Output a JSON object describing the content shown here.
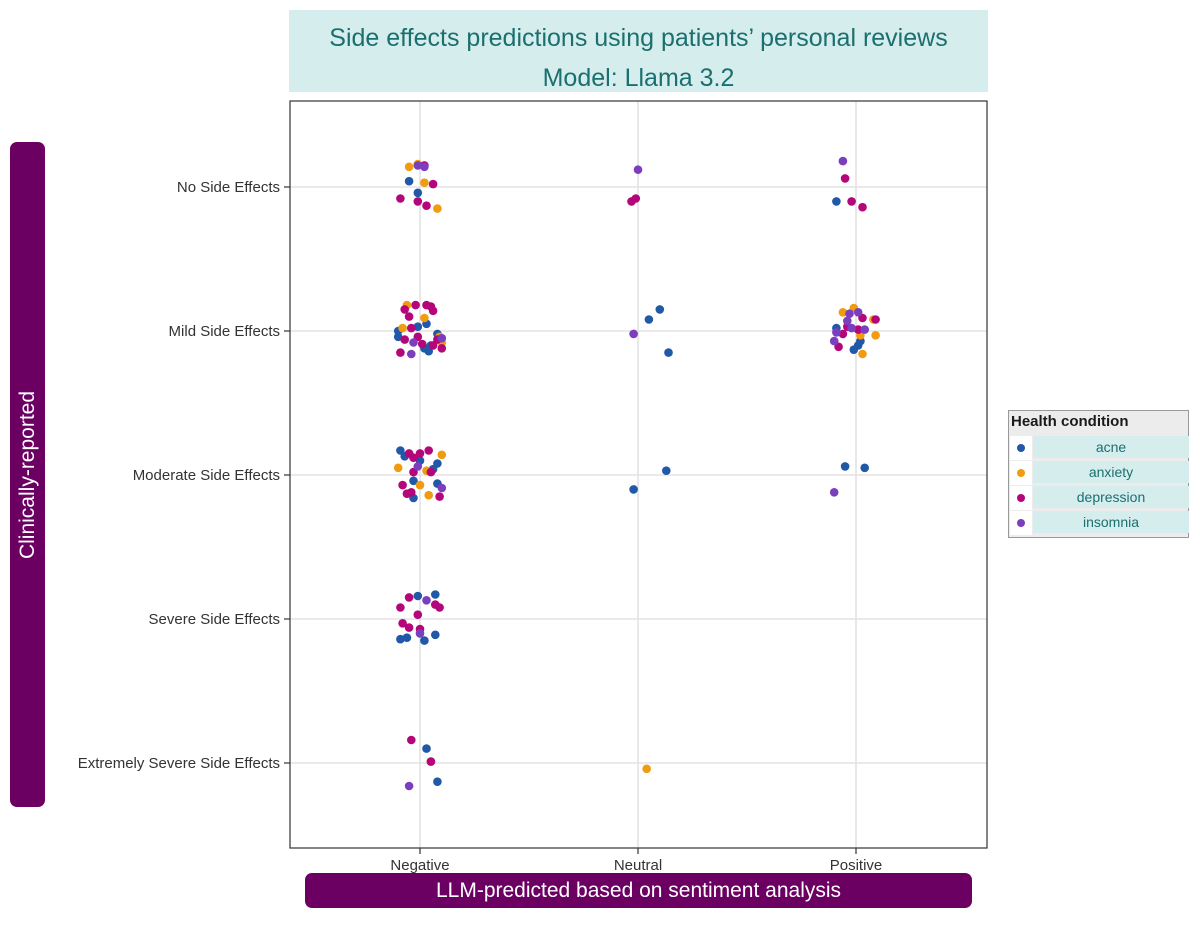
{
  "title": {
    "line1": "Side effects predictions using patients’ personal reviews",
    "line2": "Model: Llama 3.2"
  },
  "y_axis_label": "Clinically-reported",
  "x_axis_label": "LLM-predicted based on sentiment analysis",
  "legend": {
    "title": "Health condition",
    "items": [
      {
        "label": "acne",
        "color": "#2158a8"
      },
      {
        "label": "anxiety",
        "color": "#f09b10"
      },
      {
        "label": "depression",
        "color": "#b5057a"
      },
      {
        "label": "insomnia",
        "color": "#7a3fbf"
      }
    ]
  },
  "chart_data": {
    "type": "scatter",
    "x_categories": [
      "Negative",
      "Neutral",
      "Positive"
    ],
    "y_categories": [
      "Extremely Severe Side Effects",
      "Severe Side Effects",
      "Moderate Side Effects",
      "Mild Side Effects",
      "No Side Effects"
    ],
    "grid": true,
    "legend_position": "right",
    "series": [
      {
        "name": "acne",
        "color": "#2158a8",
        "points": [
          [
            "Negative",
            "No Side Effects",
            -0.05,
            0.04
          ],
          [
            "Negative",
            "No Side Effects",
            -0.01,
            -0.04
          ],
          [
            "Negative",
            "Mild Side Effects",
            -0.1,
            0.0
          ],
          [
            "Negative",
            "Mild Side Effects",
            -0.01,
            0.03
          ],
          [
            "Negative",
            "Mild Side Effects",
            0.03,
            0.05
          ],
          [
            "Negative",
            "Mild Side Effects",
            0.08,
            -0.02
          ],
          [
            "Negative",
            "Mild Side Effects",
            0.05,
            -0.1
          ],
          [
            "Negative",
            "Mild Side Effects",
            0.02,
            -0.12
          ],
          [
            "Negative",
            "Mild Side Effects",
            0.04,
            -0.14
          ],
          [
            "Negative",
            "Mild Side Effects",
            -0.1,
            -0.04
          ],
          [
            "Negative",
            "Moderate Side Effects",
            -0.09,
            0.17
          ],
          [
            "Negative",
            "Moderate Side Effects",
            -0.07,
            0.13
          ],
          [
            "Negative",
            "Moderate Side Effects",
            -0.03,
            -0.04
          ],
          [
            "Negative",
            "Moderate Side Effects",
            0.0,
            0.1
          ],
          [
            "Negative",
            "Moderate Side Effects",
            0.06,
            0.04
          ],
          [
            "Negative",
            "Moderate Side Effects",
            0.08,
            0.08
          ],
          [
            "Negative",
            "Moderate Side Effects",
            0.08,
            -0.06
          ],
          [
            "Negative",
            "Moderate Side Effects",
            -0.03,
            -0.16
          ],
          [
            "Negative",
            "Severe Side Effects",
            -0.01,
            0.16
          ],
          [
            "Negative",
            "Severe Side Effects",
            0.07,
            0.17
          ],
          [
            "Negative",
            "Severe Side Effects",
            -0.06,
            -0.13
          ],
          [
            "Negative",
            "Severe Side Effects",
            -0.09,
            -0.14
          ],
          [
            "Negative",
            "Severe Side Effects",
            0.02,
            -0.15
          ],
          [
            "Negative",
            "Severe Side Effects",
            0.07,
            -0.11
          ],
          [
            "Negative",
            "Extremely Severe Side Effects",
            0.03,
            0.1
          ],
          [
            "Negative",
            "Extremely Severe Side Effects",
            0.08,
            -0.13
          ],
          [
            "Neutral",
            "Mild Side Effects",
            0.05,
            0.08
          ],
          [
            "Neutral",
            "Mild Side Effects",
            0.1,
            0.15
          ],
          [
            "Neutral",
            "Mild Side Effects",
            0.14,
            -0.15
          ],
          [
            "Neutral",
            "Moderate Side Effects",
            0.13,
            0.03
          ],
          [
            "Neutral",
            "Moderate Side Effects",
            -0.02,
            -0.1
          ],
          [
            "Positive",
            "No Side Effects",
            -0.09,
            -0.1
          ],
          [
            "Positive",
            "Mild Side Effects",
            -0.09,
            0.02
          ],
          [
            "Positive",
            "Mild Side Effects",
            -0.01,
            -0.13
          ],
          [
            "Positive",
            "Mild Side Effects",
            0.01,
            -0.1
          ],
          [
            "Positive",
            "Mild Side Effects",
            0.02,
            -0.07
          ],
          [
            "Positive",
            "Moderate Side Effects",
            -0.05,
            0.06
          ],
          [
            "Positive",
            "Moderate Side Effects",
            0.04,
            0.05
          ]
        ]
      },
      {
        "name": "anxiety",
        "color": "#f09b10",
        "points": [
          [
            "Negative",
            "No Side Effects",
            -0.05,
            0.14
          ],
          [
            "Negative",
            "No Side Effects",
            -0.01,
            0.16
          ],
          [
            "Negative",
            "No Side Effects",
            0.02,
            0.03
          ],
          [
            "Negative",
            "No Side Effects",
            0.08,
            -0.15
          ],
          [
            "Negative",
            "Mild Side Effects",
            -0.06,
            0.18
          ],
          [
            "Negative",
            "Mild Side Effects",
            0.02,
            0.09
          ],
          [
            "Negative",
            "Mild Side Effects",
            -0.08,
            0.02
          ],
          [
            "Negative",
            "Mild Side Effects",
            0.09,
            -0.04
          ],
          [
            "Negative",
            "Mild Side Effects",
            0.1,
            -0.08
          ],
          [
            "Negative",
            "Moderate Side Effects",
            -0.1,
            0.05
          ],
          [
            "Negative",
            "Moderate Side Effects",
            0.03,
            0.03
          ],
          [
            "Negative",
            "Moderate Side Effects",
            0.1,
            0.14
          ],
          [
            "Negative",
            "Moderate Side Effects",
            0.0,
            -0.07
          ],
          [
            "Negative",
            "Moderate Side Effects",
            0.04,
            -0.14
          ],
          [
            "Negative",
            "Extremely Severe Side Effects",
            0.05,
            0.01
          ],
          [
            "Neutral",
            "Extremely Severe Side Effects",
            0.04,
            -0.04
          ],
          [
            "Positive",
            "Mild Side Effects",
            -0.06,
            0.13
          ],
          [
            "Positive",
            "Mild Side Effects",
            -0.01,
            0.16
          ],
          [
            "Positive",
            "Mild Side Effects",
            0.08,
            0.08
          ],
          [
            "Positive",
            "Mild Side Effects",
            0.09,
            -0.03
          ],
          [
            "Positive",
            "Mild Side Effects",
            0.03,
            -0.16
          ],
          [
            "Positive",
            "Mild Side Effects",
            0.02,
            -0.03
          ]
        ]
      },
      {
        "name": "depression",
        "color": "#b5057a",
        "points": [
          [
            "Negative",
            "No Side Effects",
            -0.09,
            -0.08
          ],
          [
            "Negative",
            "No Side Effects",
            -0.01,
            -0.1
          ],
          [
            "Negative",
            "No Side Effects",
            0.06,
            0.02
          ],
          [
            "Negative",
            "No Side Effects",
            0.03,
            -0.13
          ],
          [
            "Negative",
            "No Side Effects",
            0.02,
            0.15
          ],
          [
            "Negative",
            "Mild Side Effects",
            -0.07,
            0.15
          ],
          [
            "Negative",
            "Mild Side Effects",
            -0.05,
            0.1
          ],
          [
            "Negative",
            "Mild Side Effects",
            -0.04,
            0.02
          ],
          [
            "Negative",
            "Mild Side Effects",
            -0.02,
            0.18
          ],
          [
            "Negative",
            "Mild Side Effects",
            0.03,
            0.18
          ],
          [
            "Negative",
            "Mild Side Effects",
            0.05,
            0.17
          ],
          [
            "Negative",
            "Mild Side Effects",
            0.06,
            0.14
          ],
          [
            "Negative",
            "Mild Side Effects",
            -0.07,
            -0.06
          ],
          [
            "Negative",
            "Mild Side Effects",
            -0.01,
            -0.04
          ],
          [
            "Negative",
            "Mild Side Effects",
            0.01,
            -0.09
          ],
          [
            "Negative",
            "Mild Side Effects",
            0.06,
            -0.1
          ],
          [
            "Negative",
            "Mild Side Effects",
            0.08,
            -0.06
          ],
          [
            "Negative",
            "Mild Side Effects",
            0.1,
            -0.12
          ],
          [
            "Negative",
            "Mild Side Effects",
            -0.09,
            -0.15
          ],
          [
            "Negative",
            "Moderate Side Effects",
            -0.05,
            0.15
          ],
          [
            "Negative",
            "Moderate Side Effects",
            -0.03,
            0.12
          ],
          [
            "Negative",
            "Moderate Side Effects",
            0.0,
            0.15
          ],
          [
            "Negative",
            "Moderate Side Effects",
            0.04,
            0.17
          ],
          [
            "Negative",
            "Moderate Side Effects",
            -0.03,
            0.02
          ],
          [
            "Negative",
            "Moderate Side Effects",
            0.05,
            0.02
          ],
          [
            "Negative",
            "Moderate Side Effects",
            -0.08,
            -0.07
          ],
          [
            "Negative",
            "Moderate Side Effects",
            -0.06,
            -0.13
          ],
          [
            "Negative",
            "Moderate Side Effects",
            -0.04,
            -0.12
          ],
          [
            "Negative",
            "Moderate Side Effects",
            0.09,
            -0.15
          ],
          [
            "Negative",
            "Severe Side Effects",
            -0.09,
            0.08
          ],
          [
            "Negative",
            "Severe Side Effects",
            -0.05,
            0.15
          ],
          [
            "Negative",
            "Severe Side Effects",
            -0.08,
            -0.03
          ],
          [
            "Negative",
            "Severe Side Effects",
            -0.01,
            0.03
          ],
          [
            "Negative",
            "Severe Side Effects",
            0.07,
            0.1
          ],
          [
            "Negative",
            "Severe Side Effects",
            0.09,
            0.08
          ],
          [
            "Negative",
            "Severe Side Effects",
            -0.05,
            -0.06
          ],
          [
            "Negative",
            "Severe Side Effects",
            0.0,
            -0.07
          ],
          [
            "Negative",
            "Extremely Severe Side Effects",
            -0.04,
            0.16
          ],
          [
            "Negative",
            "Extremely Severe Side Effects",
            0.05,
            0.01
          ],
          [
            "Neutral",
            "No Side Effects",
            -0.03,
            -0.1
          ],
          [
            "Neutral",
            "No Side Effects",
            -0.01,
            -0.08
          ],
          [
            "Positive",
            "No Side Effects",
            -0.05,
            0.06
          ],
          [
            "Positive",
            "No Side Effects",
            -0.02,
            -0.1
          ],
          [
            "Positive",
            "No Side Effects",
            0.03,
            -0.14
          ],
          [
            "Positive",
            "Mild Side Effects",
            -0.06,
            -0.02
          ],
          [
            "Positive",
            "Mild Side Effects",
            -0.04,
            0.03
          ],
          [
            "Positive",
            "Mild Side Effects",
            0.01,
            0.01
          ],
          [
            "Positive",
            "Mild Side Effects",
            0.03,
            0.09
          ],
          [
            "Positive",
            "Mild Side Effects",
            0.09,
            0.08
          ],
          [
            "Positive",
            "Mild Side Effects",
            -0.08,
            -0.11
          ]
        ]
      },
      {
        "name": "insomnia",
        "color": "#7a3fbf",
        "points": [
          [
            "Negative",
            "No Side Effects",
            -0.01,
            0.15
          ],
          [
            "Negative",
            "No Side Effects",
            0.02,
            0.14
          ],
          [
            "Negative",
            "Mild Side Effects",
            -0.04,
            -0.16
          ],
          [
            "Negative",
            "Mild Side Effects",
            0.1,
            -0.05
          ],
          [
            "Negative",
            "Mild Side Effects",
            -0.03,
            -0.08
          ],
          [
            "Negative",
            "Moderate Side Effects",
            -0.01,
            0.06
          ],
          [
            "Negative",
            "Moderate Side Effects",
            0.1,
            -0.09
          ],
          [
            "Negative",
            "Severe Side Effects",
            0.03,
            0.13
          ],
          [
            "Negative",
            "Severe Side Effects",
            0.0,
            -0.1
          ],
          [
            "Negative",
            "Extremely Severe Side Effects",
            -0.05,
            -0.16
          ],
          [
            "Neutral",
            "No Side Effects",
            0.0,
            0.12
          ],
          [
            "Neutral",
            "Mild Side Effects",
            -0.02,
            -0.02
          ],
          [
            "Positive",
            "No Side Effects",
            -0.06,
            0.18
          ],
          [
            "Positive",
            "Mild Side Effects",
            -0.03,
            0.12
          ],
          [
            "Positive",
            "Mild Side Effects",
            -0.02,
            0.02
          ],
          [
            "Positive",
            "Mild Side Effects",
            -0.1,
            -0.07
          ],
          [
            "Positive",
            "Mild Side Effects",
            -0.04,
            0.07
          ],
          [
            "Positive",
            "Mild Side Effects",
            0.01,
            0.13
          ],
          [
            "Positive",
            "Mild Side Effects",
            0.04,
            0.01
          ],
          [
            "Positive",
            "Mild Side Effects",
            -0.09,
            -0.01
          ],
          [
            "Positive",
            "Moderate Side Effects",
            -0.1,
            -0.12
          ]
        ]
      }
    ]
  }
}
